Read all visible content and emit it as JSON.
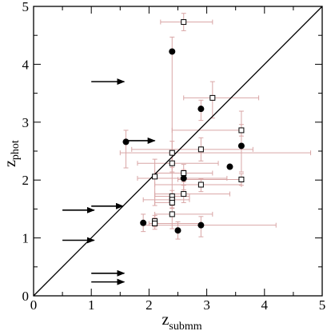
{
  "chart_data": {
    "type": "scatter",
    "title": "",
    "xlabel": {
      "main": "z",
      "sub": "submm"
    },
    "ylabel": {
      "main": "z",
      "sub": "phot"
    },
    "xlim": [
      0,
      5
    ],
    "ylim": [
      0,
      5
    ],
    "x_ticks": [
      "0",
      "1",
      "2",
      "3",
      "4",
      "5"
    ],
    "y_ticks": [
      "0",
      "1",
      "2",
      "3",
      "4",
      "5"
    ],
    "grid": false,
    "diagonal_line": [
      [
        0,
        0
      ],
      [
        5,
        5
      ]
    ],
    "colors": {
      "errorbar": "#d9a6a6",
      "marker": "#000000",
      "line": "#000000"
    },
    "series": [
      {
        "marker": "filled-circle",
        "points": [
          {
            "x": 1.6,
            "y": 2.66,
            "xerr": [
              0.0,
              0.0
            ],
            "yerr": [
              0.45,
              0.2
            ]
          },
          {
            "x": 2.4,
            "y": 4.22,
            "xerr": [
              0.0,
              0.0
            ],
            "yerr": [
              2.7,
              0.25
            ]
          },
          {
            "x": 2.9,
            "y": 3.23,
            "xerr": [
              0.0,
              0.0
            ],
            "yerr": [
              0.2,
              0.15
            ]
          },
          {
            "x": 2.6,
            "y": 2.03,
            "xerr": [
              0.8,
              0.75
            ],
            "yerr": [
              0.2,
              0.15
            ]
          },
          {
            "x": 3.4,
            "y": 2.23,
            "xerr": [
              0.0,
              0.0
            ],
            "yerr": [
              0.0,
              0.0
            ]
          },
          {
            "x": 3.6,
            "y": 2.59,
            "xerr": [
              0.0,
              0.0
            ],
            "yerr": [
              0.45,
              0.6
            ]
          },
          {
            "x": 1.9,
            "y": 1.26,
            "xerr": [
              0.0,
              0.0
            ],
            "yerr": [
              0.15,
              0.15
            ]
          },
          {
            "x": 2.5,
            "y": 1.13,
            "xerr": [
              0.0,
              0.0
            ],
            "yerr": [
              0.15,
              0.15
            ]
          },
          {
            "x": 2.9,
            "y": 1.22,
            "xerr": [
              1.0,
              1.3
            ],
            "yerr": [
              0.2,
              0.15
            ]
          }
        ]
      },
      {
        "marker": "open-square",
        "points": [
          {
            "x": 2.6,
            "y": 4.73,
            "xerr": [
              0.4,
              0.5
            ],
            "yerr": [
              0.15,
              0.15
            ]
          },
          {
            "x": 3.1,
            "y": 3.42,
            "xerr": [
              0.5,
              0.8
            ],
            "yerr": [
              0.35,
              0.28
            ]
          },
          {
            "x": 3.6,
            "y": 2.86,
            "xerr": [
              1.2,
              0.0
            ],
            "yerr": [
              0.1,
              0.1
            ]
          },
          {
            "x": 2.9,
            "y": 2.53,
            "xerr": [
              1.2,
              0.9
            ],
            "yerr": [
              0.2,
              0.2
            ]
          },
          {
            "x": 2.4,
            "y": 2.47,
            "xerr": [
              0.9,
              2.4
            ],
            "yerr": [
              0.25,
              0.2
            ]
          },
          {
            "x": 2.4,
            "y": 2.29,
            "xerr": [
              0.6,
              0.8
            ],
            "yerr": [
              0.15,
              0.15
            ]
          },
          {
            "x": 2.6,
            "y": 2.12,
            "xerr": [
              0.5,
              0.5
            ],
            "yerr": [
              0.15,
              0.15
            ]
          },
          {
            "x": 2.1,
            "y": 2.06,
            "xerr": [
              0.0,
              0.0
            ],
            "yerr": [
              0.5,
              0.3
            ]
          },
          {
            "x": 3.6,
            "y": 2.01,
            "xerr": [
              1.1,
              0.0
            ],
            "yerr": [
              0.1,
              0.1
            ]
          },
          {
            "x": 2.9,
            "y": 1.92,
            "xerr": [
              0.8,
              0.7
            ],
            "yerr": [
              0.12,
              0.1
            ]
          },
          {
            "x": 2.6,
            "y": 1.76,
            "xerr": [
              0.5,
              0.8
            ],
            "yerr": [
              0.15,
              0.15
            ]
          },
          {
            "x": 2.4,
            "y": 1.72,
            "xerr": [
              0.3,
              0.3
            ],
            "yerr": [
              0.1,
              0.1
            ]
          },
          {
            "x": 2.4,
            "y": 1.66,
            "xerr": [
              0.5,
              0.3
            ],
            "yerr": [
              0.1,
              0.1
            ]
          },
          {
            "x": 2.4,
            "y": 1.61,
            "xerr": [
              0.3,
              0.0
            ],
            "yerr": [
              0.1,
              0.1
            ]
          },
          {
            "x": 2.4,
            "y": 1.41,
            "xerr": [
              0.3,
              0.7
            ],
            "yerr": [
              0.25,
              0.2
            ]
          },
          {
            "x": 2.1,
            "y": 1.29,
            "xerr": [
              0.0,
              0.0
            ],
            "yerr": [
              0.1,
              0.1
            ]
          },
          {
            "x": 2.1,
            "y": 1.25,
            "xerr": [
              0.1,
              0.8
            ],
            "yerr": [
              0.1,
              0.1
            ]
          }
        ]
      },
      {
        "marker": "arrow-right",
        "points": [
          {
            "x": 1.0,
            "y": 3.7,
            "length": 0.57
          },
          {
            "x": 1.6,
            "y": 2.68,
            "length": 0.5
          },
          {
            "x": 1.0,
            "y": 1.55,
            "length": 0.55
          },
          {
            "x": 0.5,
            "y": 1.48,
            "length": 0.55
          },
          {
            "x": 0.5,
            "y": 0.96,
            "length": 0.55
          },
          {
            "x": 1.0,
            "y": 0.39,
            "length": 0.57
          },
          {
            "x": 1.0,
            "y": 0.24,
            "length": 0.57
          }
        ]
      }
    ]
  }
}
